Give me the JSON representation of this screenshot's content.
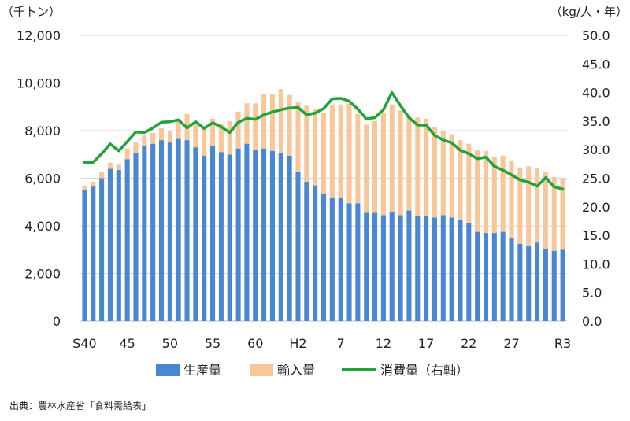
{
  "chart_data": {
    "type": "bar",
    "stacked": true,
    "left_unit": "（千トン）",
    "right_unit": "（kg/人・年）",
    "ylim_left": [
      0,
      12000
    ],
    "ylim_right": [
      0,
      50
    ],
    "grid": true,
    "left_ticks": [
      "0",
      "2,000",
      "4,000",
      "6,000",
      "8,000",
      "10,000",
      "12,000"
    ],
    "right_ticks": [
      "0.0",
      "5.0",
      "10.0",
      "15.0",
      "20.0",
      "25.0",
      "30.0",
      "35.0",
      "40.0",
      "45.0",
      "50.0"
    ],
    "x_tick_labels": [
      {
        "index": 0,
        "label": "S40"
      },
      {
        "index": 5,
        "label": "45"
      },
      {
        "index": 10,
        "label": "50"
      },
      {
        "index": 15,
        "label": "55"
      },
      {
        "index": 20,
        "label": "60"
      },
      {
        "index": 25,
        "label": "H2"
      },
      {
        "index": 30,
        "label": "7"
      },
      {
        "index": 35,
        "label": "12"
      },
      {
        "index": 40,
        "label": "17"
      },
      {
        "index": 45,
        "label": "22"
      },
      {
        "index": 50,
        "label": "27"
      },
      {
        "index": 56,
        "label": "R3"
      }
    ],
    "legend_position": "bottom",
    "series": [
      {
        "name": "生産量",
        "axis": "left",
        "kind": "bar",
        "color": "#4a86d1",
        "values": [
          5500,
          5650,
          6000,
          6400,
          6350,
          6800,
          7050,
          7350,
          7450,
          7600,
          7500,
          7650,
          7600,
          7300,
          6950,
          7350,
          7100,
          7000,
          7250,
          7450,
          7200,
          7250,
          7150,
          7050,
          6950,
          6250,
          5850,
          5700,
          5350,
          5200,
          5200,
          4950,
          4950,
          4550,
          4550,
          4450,
          4600,
          4450,
          4650,
          4400,
          4400,
          4350,
          4450,
          4350,
          4250,
          4100,
          3750,
          3700,
          3700,
          3750,
          3500,
          3250,
          3150,
          3300,
          3050,
          2950,
          3000
        ]
      },
      {
        "name": "輸入量",
        "axis": "left",
        "kind": "bar",
        "color": "#f7c79a",
        "values": [
          200,
          200,
          250,
          250,
          250,
          450,
          450,
          450,
          450,
          500,
          500,
          800,
          1100,
          950,
          1250,
          1150,
          1200,
          1400,
          1550,
          1700,
          1950,
          2300,
          2400,
          2700,
          2550,
          2950,
          3200,
          3200,
          3400,
          3900,
          3900,
          4200,
          3750,
          3700,
          3850,
          4300,
          4500,
          4400,
          3950,
          4150,
          4100,
          3800,
          3550,
          3500,
          3350,
          3350,
          3450,
          3450,
          3200,
          3200,
          3250,
          3200,
          3350,
          3150,
          3200,
          3100,
          3000
        ]
      },
      {
        "name": "消費量（右軸）",
        "axis": "right",
        "kind": "line",
        "color": "#1fa33a",
        "values": [
          27.8,
          27.8,
          29.3,
          31.0,
          29.8,
          31.4,
          33.1,
          33.0,
          33.8,
          34.8,
          34.9,
          35.2,
          33.8,
          34.9,
          33.7,
          34.7,
          34.0,
          33.0,
          34.8,
          35.5,
          35.3,
          36.1,
          36.6,
          37.0,
          37.3,
          37.4,
          36.1,
          36.4,
          37.2,
          38.9,
          39.0,
          38.5,
          37.1,
          35.4,
          35.6,
          37.0,
          40.0,
          37.7,
          35.6,
          34.3,
          34.3,
          32.5,
          31.7,
          31.2,
          29.9,
          29.3,
          28.4,
          28.7,
          27.1,
          26.4,
          25.6,
          24.7,
          24.3,
          23.6,
          25.1,
          23.5,
          23.1
        ]
      }
    ]
  },
  "source_note": "出典：農林水産省「食料需給表」"
}
